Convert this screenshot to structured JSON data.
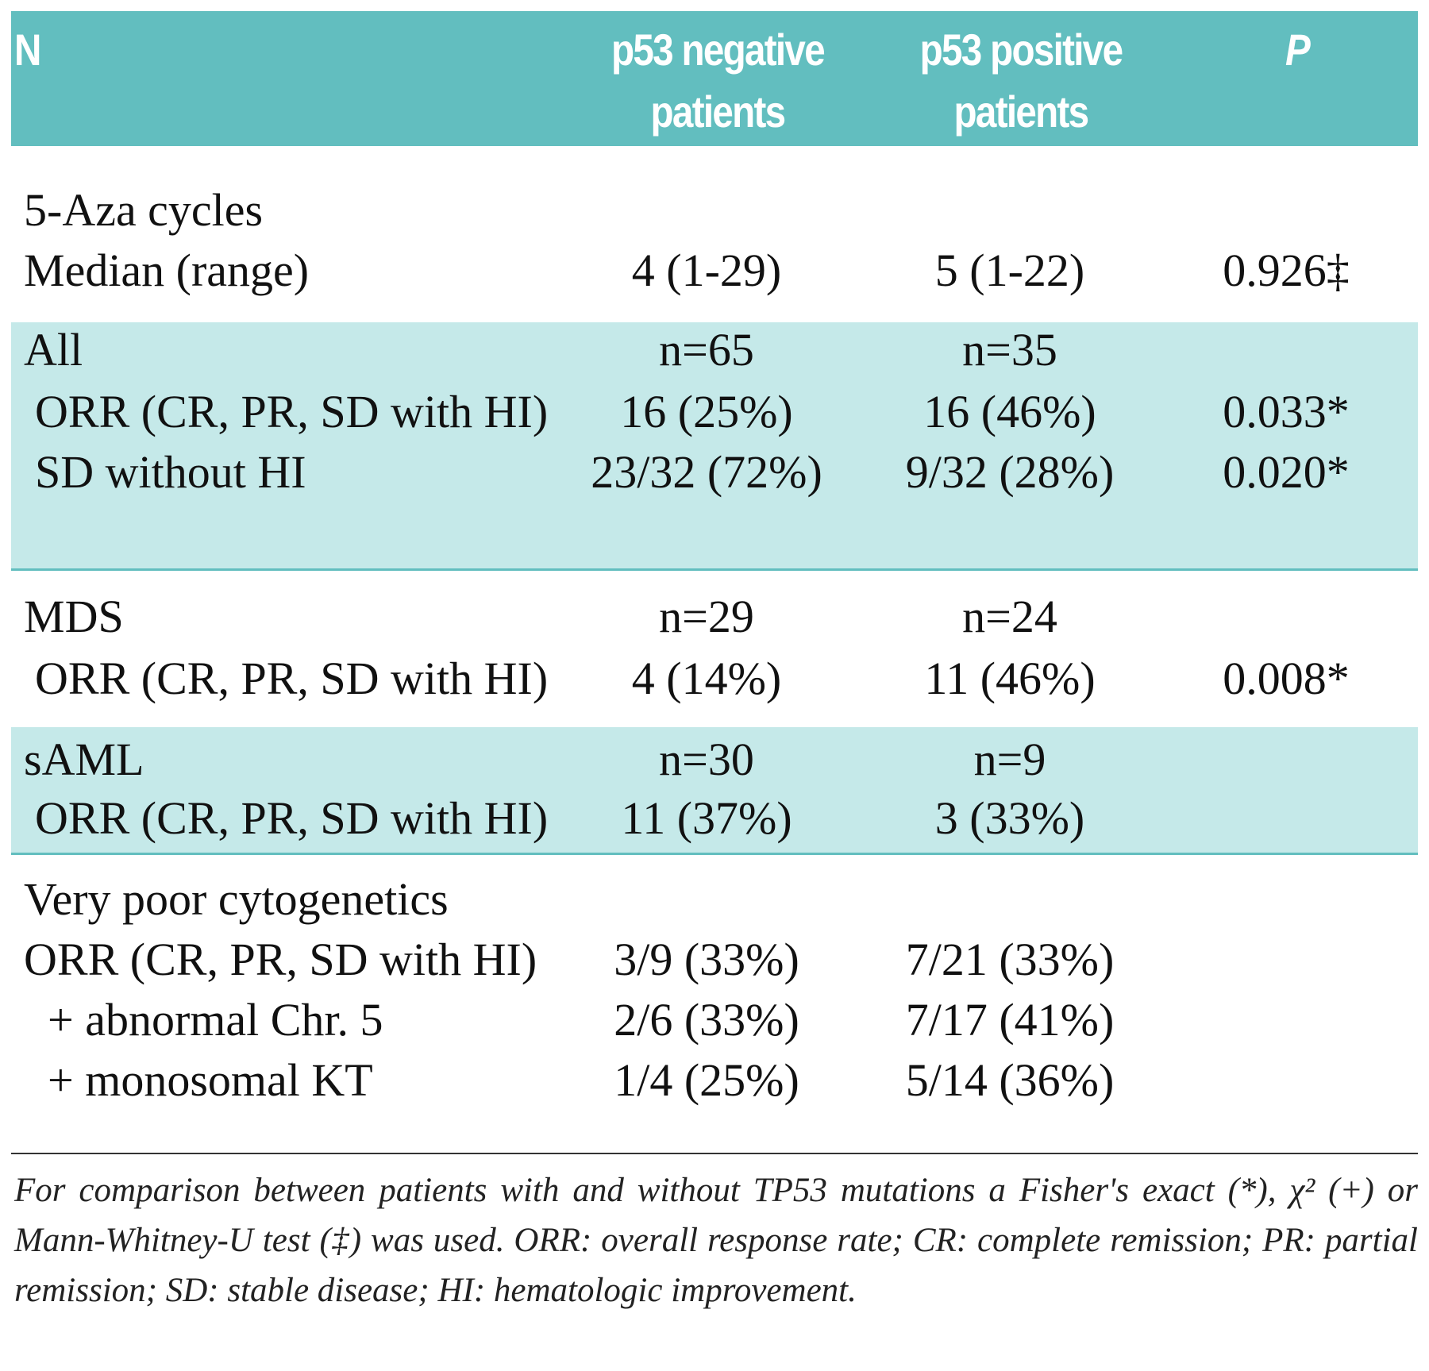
{
  "header": {
    "col_label": "N",
    "col_negative": "p53 negative patients",
    "col_positive": "p53 positive patients",
    "col_p": "P"
  },
  "rows": [
    {
      "label": "5-Aza cycles",
      "neg": "",
      "pos": "",
      "p": ""
    },
    {
      "label": "Median (range)",
      "neg": "4 (1-29)",
      "pos": "5 (1-22)",
      "p": "0.926‡"
    },
    {
      "label": "All",
      "neg": "n=65",
      "pos": "n=35",
      "p": ""
    },
    {
      "label": "ORR (CR, PR, SD with HI)",
      "neg": "16 (25%)",
      "pos": "16 (46%)",
      "p": "0.033*"
    },
    {
      "label": "SD without HI",
      "neg": "23/32 (72%)",
      "pos": "9/32 (28%)",
      "p": "0.020*"
    },
    {
      "label": "MDS",
      "neg": "n=29",
      "pos": "n=24",
      "p": ""
    },
    {
      "label": "ORR (CR, PR, SD with HI)",
      "neg": "4 (14%)",
      "pos": "11 (46%)",
      "p": "0.008*"
    },
    {
      "label": "sAML",
      "neg": "n=30",
      "pos": "n=9",
      "p": ""
    },
    {
      "label": "ORR (CR, PR, SD with HI)",
      "neg": "11 (37%)",
      "pos": "3 (33%)",
      "p": ""
    },
    {
      "label": "Very poor cytogenetics",
      "neg": "",
      "pos": "",
      "p": ""
    },
    {
      "label": "ORR (CR, PR, SD with HI)",
      "neg": "3/9 (33%)",
      "pos": "7/21 (33%)",
      "p": ""
    },
    {
      "label": "+ abnormal Chr. 5",
      "neg": "2/6 (33%)",
      "pos": "7/17 (41%)",
      "p": ""
    },
    {
      "label": "+ monosomal KT",
      "neg": "1/4 (25%)",
      "pos": "5/14 (36%)",
      "p": ""
    }
  ],
  "footnote": "For comparison between patients with and without TP53 mutations a Fisher's exact (*), χ² (+) or Mann-Whitney-U test (‡) was used. ORR: overall response rate; CR: complete remission; PR: partial remission; SD: stable disease; HI: hematologic improvement.",
  "colors": {
    "header_bg": "#62bebf",
    "band_bg": "#c5e9e9"
  }
}
